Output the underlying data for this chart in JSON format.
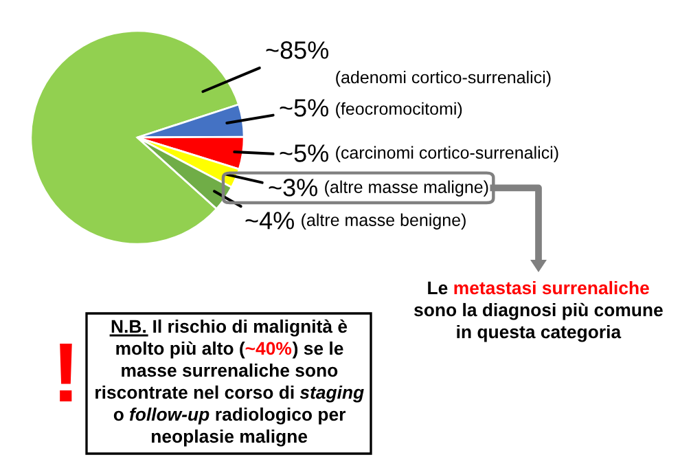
{
  "chart_data": {
    "type": "pie",
    "categories": [
      "(adenomi cortico-surrenalici)",
      "(feocromocitomi)",
      "(carcinomi cortico-surrenalici)",
      "(altre masse maligne)",
      "(altre masse benigne)"
    ],
    "values": [
      85,
      5,
      5,
      3,
      4
    ],
    "value_labels": [
      "~85%",
      "~5%",
      "~5%",
      "~3%",
      "~4%"
    ],
    "colors": [
      "#92d050",
      "#4472c4",
      "#ff0000",
      "#ffff00",
      "#70ad47"
    ],
    "annotations": [
      "Le ",
      "metastasi surrenaliche",
      "sono la diagnosi più comune",
      "in questa categoria",
      "!",
      "N.B.",
      " Il rischio di malignità è",
      "molto più alto (",
      "~40%",
      ") se le",
      "masse surrenaliche sono",
      "riscontrate nel corso di ",
      "staging",
      "o ",
      "follow-up",
      " radiologico per",
      "neoplasie maligne"
    ]
  }
}
